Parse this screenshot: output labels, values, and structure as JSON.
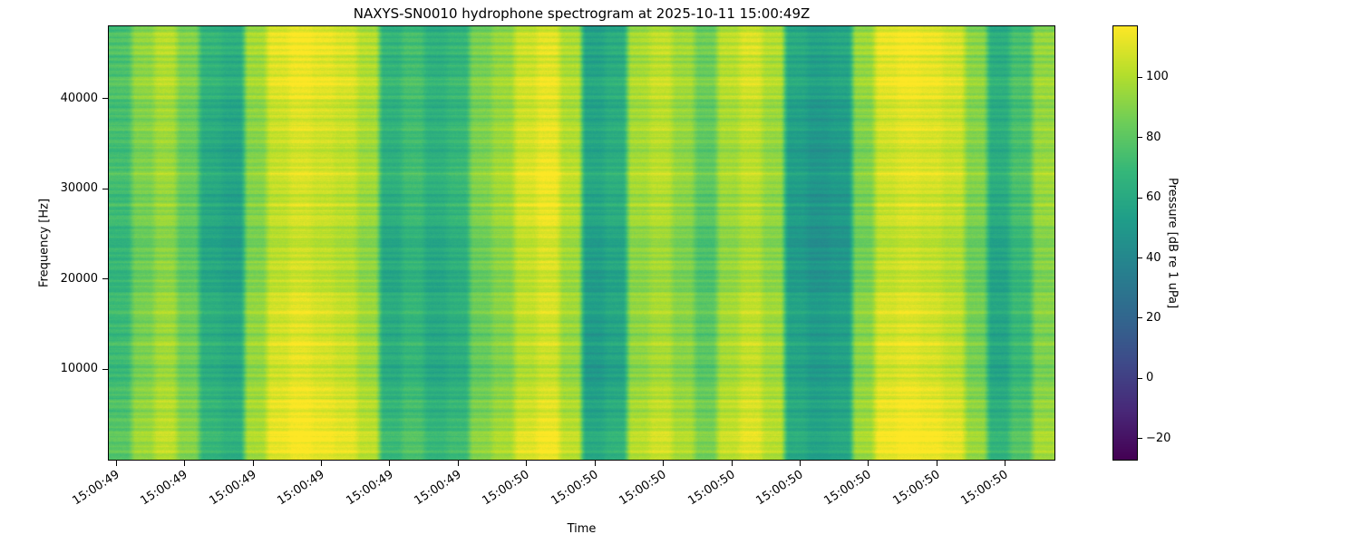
{
  "chart_data": {
    "type": "heatmap",
    "title": "NAXYS-SN0010 hydrophone spectrogram at 2025-10-11 15:00:49Z",
    "xlabel": "Time",
    "ylabel": "Frequency [Hz]",
    "colorbar_label": "Pressure [dB re 1 uPa]",
    "colormap": "viridis",
    "vmin": -27,
    "vmax": 117,
    "freq_min": 0,
    "freq_max": 48000,
    "ytick_values": [
      10000,
      20000,
      30000,
      40000
    ],
    "xtick_labels": [
      "15:00:49",
      "15:00:49",
      "15:00:49",
      "15:00:49",
      "15:00:49",
      "15:00:49",
      "15:00:50",
      "15:00:50",
      "15:00:50",
      "15:00:50",
      "15:00:50",
      "15:00:50",
      "15:00:50",
      "15:00:50"
    ],
    "colorbar_tick_values": [
      100,
      80,
      60,
      40,
      20,
      0,
      -20
    ],
    "colorbar_tick_labels": [
      "100",
      "80",
      "60",
      "40",
      "20",
      "0",
      "−20"
    ],
    "time_profile_db": [
      72,
      88,
      96,
      84,
      62,
      58,
      92,
      106,
      110,
      107,
      104,
      96,
      63,
      70,
      62,
      66,
      86,
      93,
      105,
      110,
      98,
      55,
      60,
      95,
      100,
      92,
      80,
      97,
      103,
      95,
      55,
      50,
      53,
      90,
      107,
      110,
      108,
      104,
      88,
      60,
      72,
      92
    ],
    "stripe_amplitude_db": 7,
    "noise_db": 4,
    "low_freq_boost_db": 2.5
  }
}
